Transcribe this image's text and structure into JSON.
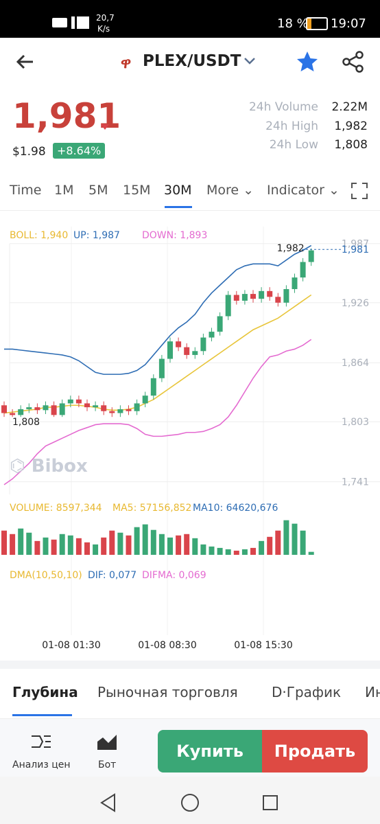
{
  "status": {
    "speed": "20,7",
    "speed_unit": "K/s",
    "battery": "18 %",
    "time": "19:07"
  },
  "header": {
    "pair": "PLEX/USDT"
  },
  "ticker": {
    "price": "1,981",
    "usd": "$1.98",
    "change": "+8.64%",
    "stats": [
      {
        "label": "24h Volume",
        "value": "2.22M"
      },
      {
        "label": "24h High",
        "value": "1,982"
      },
      {
        "label": "24h Low",
        "value": "1,808"
      }
    ]
  },
  "intervals": [
    "Time",
    "1M",
    "5M",
    "15M",
    "30M"
  ],
  "more": "More",
  "indicator": "Indicator",
  "chart": {
    "type": "candlestick",
    "indicators": [
      "BOLL: 1,940",
      "UP: 1,987",
      "DOWN: 1,893"
    ],
    "ylim": [
      1728,
      2001
    ],
    "yticks": [
      {
        "value": 1987,
        "label": "1,987"
      },
      {
        "value": 1926,
        "label": "1,926"
      },
      {
        "value": 1864,
        "label": "1,864"
      },
      {
        "value": 1803,
        "label": "1,803"
      },
      {
        "value": 1741,
        "label": "1,741"
      }
    ],
    "last": {
      "value": 1981,
      "label": "1,981"
    },
    "max_label": {
      "value": 1982,
      "label": "1,982"
    },
    "min_label": {
      "value": 1808,
      "label": "1,808"
    },
    "open": [
      1820,
      1812,
      1810,
      1816,
      1818,
      1815,
      1820,
      1810,
      1822,
      1826,
      1822,
      1818,
      1820,
      1814,
      1812,
      1816,
      1814,
      1822,
      1830,
      1848,
      1868,
      1886,
      1880,
      1872,
      1876,
      1890,
      1896,
      1912,
      1934,
      1928,
      1935,
      1930,
      1938,
      1932,
      1926,
      1940,
      1952,
      1968
    ],
    "close": [
      1812,
      1810,
      1816,
      1818,
      1815,
      1820,
      1810,
      1822,
      1826,
      1822,
      1818,
      1820,
      1814,
      1812,
      1816,
      1814,
      1822,
      1830,
      1848,
      1868,
      1886,
      1880,
      1872,
      1876,
      1890,
      1896,
      1912,
      1934,
      1928,
      1935,
      1930,
      1938,
      1932,
      1926,
      1940,
      1952,
      1968,
      1980
    ],
    "high": [
      1824,
      1816,
      1820,
      1822,
      1822,
      1824,
      1824,
      1826,
      1830,
      1830,
      1826,
      1824,
      1824,
      1818,
      1820,
      1820,
      1826,
      1834,
      1852,
      1872,
      1890,
      1890,
      1884,
      1880,
      1894,
      1900,
      1916,
      1938,
      1938,
      1939,
      1939,
      1942,
      1942,
      1936,
      1944,
      1956,
      1972,
      1982
    ],
    "low": [
      1808,
      1808,
      1808,
      1812,
      1811,
      1811,
      1808,
      1808,
      1818,
      1818,
      1814,
      1814,
      1810,
      1808,
      1808,
      1810,
      1810,
      1818,
      1826,
      1844,
      1864,
      1876,
      1868,
      1868,
      1872,
      1886,
      1892,
      1908,
      1924,
      1924,
      1926,
      1926,
      1928,
      1922,
      1922,
      1936,
      1948,
      1964
    ],
    "up_color": "#3aa776",
    "down_color": "#d9444b",
    "bands": [
      {
        "color": "#e8c53a",
        "values": [
          1812,
          1813,
          1814,
          1815,
          1816,
          1818,
          1818,
          1819,
          1820,
          1820,
          1819,
          1818,
          1816,
          1815,
          1815,
          1816,
          1818,
          1822,
          1826,
          1832,
          1838,
          1844,
          1850,
          1856,
          1862,
          1868,
          1874,
          1880,
          1886,
          1892,
          1898,
          1902,
          1906,
          1910,
          1916,
          1922,
          1928,
          1934
        ]
      },
      {
        "color": "#2e6db4",
        "values": [
          1878,
          1878,
          1877,
          1876,
          1875,
          1874,
          1873,
          1872,
          1870,
          1866,
          1860,
          1854,
          1852,
          1852,
          1852,
          1853,
          1856,
          1862,
          1872,
          1882,
          1892,
          1900,
          1906,
          1914,
          1926,
          1936,
          1944,
          1952,
          1960,
          1964,
          1966,
          1966,
          1966,
          1964,
          1970,
          1976,
          1980,
          1985
        ]
      },
      {
        "color": "#e46ad0",
        "values": [
          1738,
          1744,
          1752,
          1760,
          1770,
          1778,
          1782,
          1786,
          1790,
          1794,
          1797,
          1800,
          1801,
          1801,
          1801,
          1800,
          1796,
          1790,
          1788,
          1788,
          1789,
          1790,
          1792,
          1792,
          1793,
          1796,
          1800,
          1808,
          1820,
          1834,
          1848,
          1860,
          1870,
          1872,
          1876,
          1878,
          1882,
          1888
        ]
      }
    ],
    "xlabels": [
      "01-08 01:30",
      "01-08 08:30",
      "01-08 15:30"
    ]
  },
  "volume": {
    "labels": [
      "VOLUME: 8597,344",
      "MA5: 57156,852",
      "MA10: 64620,676"
    ],
    "ylim": [
      0,
      125000
    ],
    "values": [
      70000,
      60000,
      76000,
      64000,
      40000,
      50000,
      44000,
      60000,
      56000,
      48000,
      36000,
      30000,
      50000,
      70000,
      64000,
      56000,
      80000,
      88000,
      72000,
      60000,
      50000,
      56000,
      60000,
      48000,
      30000,
      24000,
      20000,
      16000,
      12000,
      16000,
      20000,
      40000,
      52000,
      70000,
      100000,
      90000,
      70000,
      8597
    ]
  },
  "dma": {
    "labels": [
      "DMA(10,50,10)",
      "DIF: 0,077",
      "DIFMA: 0,069"
    ]
  },
  "watermark": "Bibox",
  "tabs": [
    "Глубина",
    "Рыночная торговля",
    "D·График",
    "Ин"
  ],
  "bottom": {
    "analysis": "Анализ цен",
    "bot": "Бот",
    "buy": "Купить",
    "sell": "Продать"
  }
}
